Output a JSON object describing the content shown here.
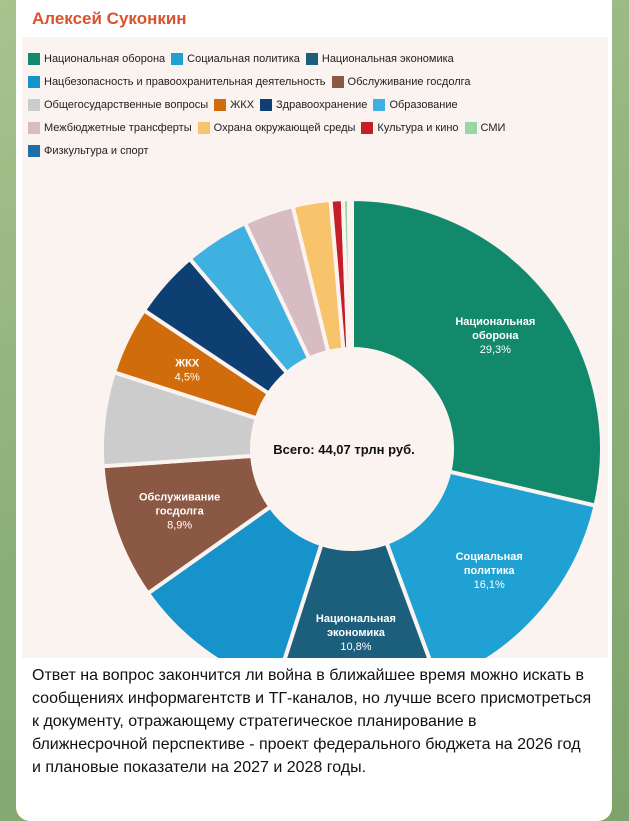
{
  "author": "Алексей Суконкин",
  "caption": "Ответ на вопрос закончится ли война в ближайшее время можно искать в сообщениях информагентств и ТГ-каналов, но лучше всего присмотреться к документу, отражающему стратегическое планирование в ближнесрочной перспективе - проект федерального бюджета на 2026 год и плановые показатели на 2027 и 2028 годы.",
  "chart_data": {
    "type": "pie",
    "center_label": "Всего: 44,07 трлн руб.",
    "categories": [
      "Национальная оборона",
      "Социальная политика",
      "Национальная экономика",
      "Нацбезопасность и правоохранительная деятельность",
      "Обслуживание госдолга",
      "Общегосударственные вопросы",
      "ЖКХ",
      "Здравоохранение",
      "Образование",
      "Межбюджетные трансферты",
      "Охрана окружающей среды",
      "Культура и кино",
      "СМИ",
      "Физкультура и спорт"
    ],
    "values": [
      29.3,
      16.1,
      10.8,
      10.5,
      8.9,
      6.2,
      4.5,
      4.5,
      4.3,
      3.3,
      2.5,
      0.8,
      0.4,
      0.2
    ],
    "labels": [
      {
        "lines": [
          "Национальная",
          "оборона",
          "29,3%"
        ]
      },
      {
        "lines": [
          "Социальная",
          "политика",
          "16,1%"
        ]
      },
      {
        "lines": [
          "Национальная",
          "экономика",
          "10,8%"
        ]
      },
      null,
      {
        "lines": [
          "Обслуживание",
          "госдолга",
          "8,9%"
        ]
      },
      null,
      {
        "lines": [
          "ЖКХ",
          "4,5%"
        ]
      },
      null,
      null,
      null,
      null,
      null,
      null,
      null
    ],
    "colors": [
      "#12896b",
      "#1fa1d3",
      "#1c5f7d",
      "#1793cc",
      "#8b5844",
      "#cccccc",
      "#d16c0d",
      "#0d3f73",
      "#3fb1e0",
      "#d7bcc4",
      "#f7c36b",
      "#c41e2a",
      "#9ad6a5",
      "#1f6ea8"
    ]
  }
}
